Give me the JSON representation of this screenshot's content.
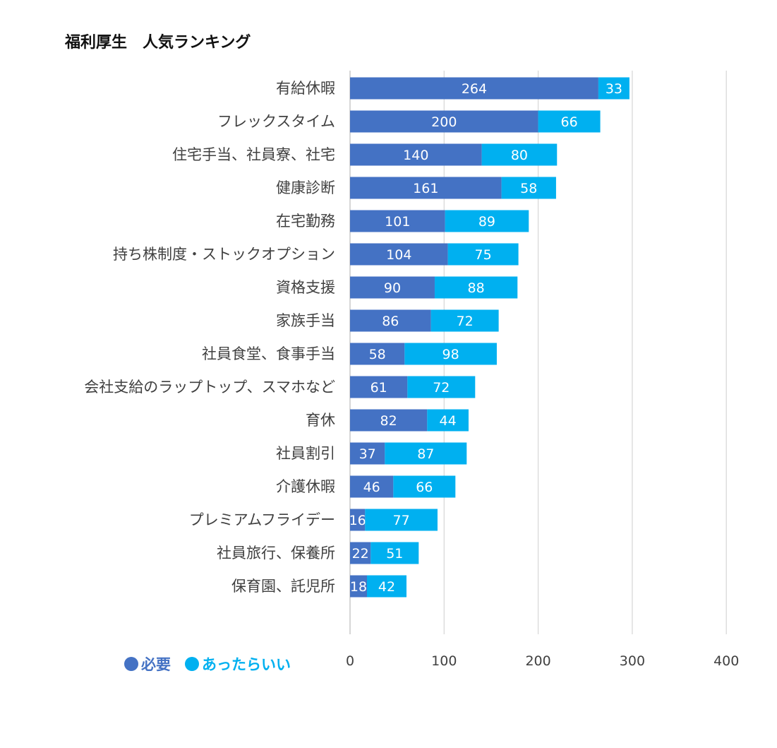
{
  "chart_data": {
    "type": "bar",
    "orientation": "horizontal",
    "stacked": true,
    "title": "福利厚生　人気ランキング",
    "categories": [
      "有給休暇",
      "フレックスタイム",
      "住宅手当、社員寮、社宅",
      "健康診断",
      "在宅勤務",
      "持ち株制度・ストックオプション",
      "資格支援",
      "家族手当",
      "社員食堂、食事手当",
      "会社支給のラップトップ、スマホなど",
      "育休",
      "社員割引",
      "介護休暇",
      "プレミアムフライデー",
      "社員旅行、保養所",
      "保育園、託児所"
    ],
    "series": [
      {
        "name": "必要",
        "color": "#4472C4",
        "values": [
          264,
          200,
          140,
          161,
          101,
          104,
          90,
          86,
          58,
          61,
          82,
          37,
          46,
          16,
          22,
          18
        ]
      },
      {
        "name": "あったらいい",
        "color": "#00B0F0",
        "values": [
          33,
          66,
          80,
          58,
          89,
          75,
          88,
          72,
          98,
          72,
          44,
          87,
          66,
          77,
          51,
          42
        ]
      }
    ],
    "xlim": [
      0,
      400
    ],
    "xticks": [
      "0",
      "100",
      "200",
      "300",
      "400"
    ],
    "grid": true,
    "legend_position": "bottom-left",
    "legend_symbols": [
      "●",
      "●"
    ]
  }
}
